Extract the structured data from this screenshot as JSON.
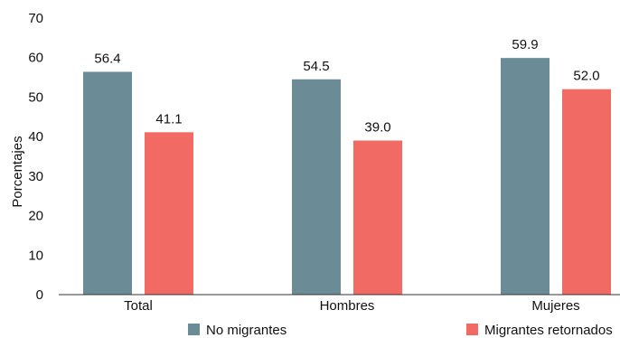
{
  "chart_data": {
    "type": "bar",
    "categories": [
      "Total",
      "Hombres",
      "Mujeres"
    ],
    "series": [
      {
        "name": "No migrantes",
        "color": "#6B8C96",
        "values": [
          56.4,
          54.5,
          59.9
        ],
        "labels": [
          "56.4",
          "54.5",
          "59.9"
        ]
      },
      {
        "name": "Migrantes retornados",
        "color": "#F26A64",
        "values": [
          41.1,
          39.0,
          52.0
        ],
        "labels": [
          "41.1",
          "39.0",
          "52.0"
        ]
      }
    ],
    "ylabel": "Porcentajes",
    "ylim": [
      0,
      70
    ],
    "yticks": [
      "0",
      "10",
      "20",
      "30",
      "40",
      "50",
      "60",
      "70"
    ],
    "grid": false,
    "legend_position": "bottom"
  }
}
